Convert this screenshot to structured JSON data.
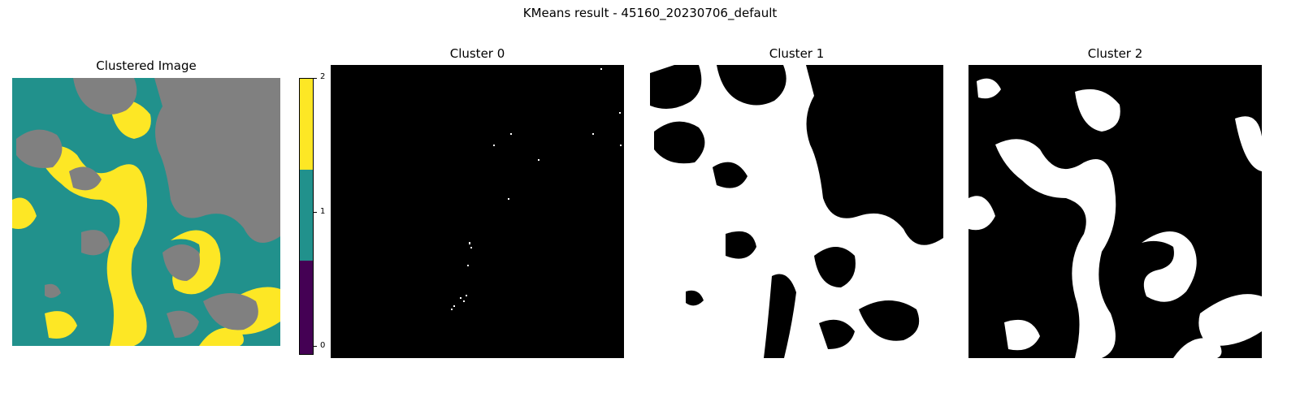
{
  "figure": {
    "suptitle": "KMeans result - 45160_20230706_default"
  },
  "panels": [
    {
      "title": "Clustered Image",
      "kind": "clustered"
    },
    {
      "title": "Cluster 0",
      "kind": "mask",
      "cluster": 0
    },
    {
      "title": "Cluster 1",
      "kind": "mask",
      "cluster": 1
    },
    {
      "title": "Cluster 2",
      "kind": "mask",
      "cluster": 2
    }
  ],
  "colorbar": {
    "ticks": [
      "0",
      "1",
      "2"
    ],
    "colors": {
      "0": "#440154",
      "1": "#21918c",
      "2": "#fde725"
    }
  },
  "colors": {
    "background": "#808080",
    "cluster1": "#21918c",
    "cluster2": "#fde725",
    "mask_on": "#ffffff",
    "mask_off": "#000000"
  }
}
